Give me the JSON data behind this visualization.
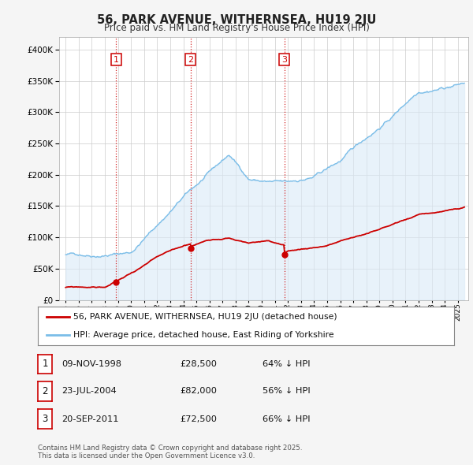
{
  "title": "56, PARK AVENUE, WITHERNSEA, HU19 2JU",
  "subtitle": "Price paid vs. HM Land Registry's House Price Index (HPI)",
  "legend_label_red": "56, PARK AVENUE, WITHERNSEA, HU19 2JU (detached house)",
  "legend_label_blue": "HPI: Average price, detached house, East Riding of Yorkshire",
  "table": [
    {
      "num": "1",
      "date": "09-NOV-1998",
      "price": "£28,500",
      "hpi": "64% ↓ HPI"
    },
    {
      "num": "2",
      "date": "23-JUL-2004",
      "price": "£82,000",
      "hpi": "56% ↓ HPI"
    },
    {
      "num": "3",
      "date": "20-SEP-2011",
      "price": "£72,500",
      "hpi": "66% ↓ HPI"
    }
  ],
  "footnote": "Contains HM Land Registry data © Crown copyright and database right 2025.\nThis data is licensed under the Open Government Licence v3.0.",
  "sale_dates": [
    1998.86,
    2004.56,
    2011.72
  ],
  "sale_prices": [
    28500,
    82000,
    72500
  ],
  "sale_labels": [
    "1",
    "2",
    "3"
  ],
  "hpi_color": "#7abde8",
  "hpi_fill_color": "#daeaf7",
  "price_color": "#cc0000",
  "background_color": "#f5f5f5",
  "plot_bg_color": "#ffffff",
  "ylim": [
    0,
    420000
  ],
  "xlim_start": 1994.5,
  "xlim_end": 2025.8,
  "vline_color": "#cc0000",
  "grid_color": "#cccccc"
}
